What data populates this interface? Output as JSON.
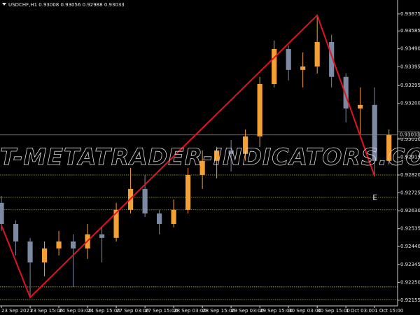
{
  "chart_data": {
    "type": "candlestick",
    "title": "USDCHF,H1  0.93008 0.93056 0.92988 0.93033",
    "watermark": "BEST-METATRADER-INDICATORS.COM",
    "annotation": "E",
    "up_color": "#f5a033",
    "down_color": "#7d8aa3",
    "candles": {
      "open": [
        0.92672,
        0.9256,
        0.92467,
        0.92356,
        0.9243,
        0.92467,
        0.9243,
        0.92505,
        0.92486,
        0.92635,
        0.92746,
        0.92616,
        0.9256,
        0.92635,
        0.9282,
        0.92895,
        0.9295,
        0.92932,
        0.93025,
        0.93303,
        0.93489,
        0.93378,
        0.93396,
        0.93526,
        0.93341,
        0.93173,
        0.93192,
        0.92895
      ],
      "high": [
        0.92709,
        0.92579,
        0.92486,
        0.92467,
        0.92523,
        0.92505,
        0.9256,
        0.92542,
        0.92672,
        0.92858,
        0.9282,
        0.92635,
        0.9269,
        0.92858,
        0.9295,
        0.92969,
        0.93006,
        0.93062,
        0.93341,
        0.93534,
        0.93508,
        0.93471,
        0.93668,
        0.93564,
        0.93359,
        0.93285,
        0.93285,
        0.93062
      ],
      "low": [
        0.92523,
        0.92393,
        0.9217,
        0.92282,
        0.92393,
        0.92226,
        0.92374,
        0.92356,
        0.92467,
        0.92616,
        0.92597,
        0.92505,
        0.92542,
        0.92616,
        0.92746,
        0.92802,
        0.92839,
        0.92895,
        0.92969,
        0.93285,
        0.93322,
        0.93285,
        0.93359,
        0.93285,
        0.93099,
        0.93025,
        0.92813,
        0.92876
      ],
      "close": [
        0.9256,
        0.92467,
        0.92356,
        0.9243,
        0.92467,
        0.9243,
        0.92505,
        0.92486,
        0.92635,
        0.92746,
        0.92616,
        0.9256,
        0.92635,
        0.9282,
        0.92895,
        0.9295,
        0.92932,
        0.93025,
        0.93303,
        0.93489,
        0.93378,
        0.93396,
        0.93526,
        0.93341,
        0.93173,
        0.93192,
        0.92895,
        0.93033
      ]
    },
    "zigzag": {
      "color": "#e0141e",
      "x": [
        0,
        2,
        22,
        26
      ],
      "values": [
        0.92553,
        0.9217,
        0.93668,
        0.92813
      ]
    },
    "levels": {
      "color": "#b8b800",
      "values": [
        0.9282,
        0.92701,
        0.92635,
        0.92226,
        0.92159
      ]
    },
    "current_price": {
      "value": 0.93033,
      "color": "#7a7a7a"
    },
    "xlim": [
      -0.1,
      27.6
    ],
    "ylim": [
      0.92125,
      0.93749
    ],
    "xticks": [
      {
        "value": 0,
        "label": "23 Sep 2021"
      },
      {
        "value": 2,
        "label": "23 Sep 15:00"
      },
      {
        "value": 4,
        "label": "24 Sep 03:00"
      },
      {
        "value": 6,
        "label": "24 Sep 15:00"
      },
      {
        "value": 8,
        "label": "27 Sep 03:00"
      },
      {
        "value": 10,
        "label": "27 Sep 15:00"
      },
      {
        "value": 12,
        "label": "28 Sep 03:00"
      },
      {
        "value": 14,
        "label": "28 Sep 15:00"
      },
      {
        "value": 16,
        "label": "29 Sep 03:00"
      },
      {
        "value": 18,
        "label": "29 Sep 15:00"
      },
      {
        "value": 20,
        "label": "30 Sep 03:00"
      },
      {
        "value": 22,
        "label": "30 Sep 15:00"
      },
      {
        "value": 24,
        "label": "1 Oct 03:00"
      },
      {
        "value": 26,
        "label": "1 Oct 15:00"
      }
    ],
    "yticks": [
      0.93675,
      0.93585,
      {
        "value": 0.9349,
        "label": "0.93490"
      },
      0.93395,
      0.93295,
      {
        "value": 0.932,
        "label": "0.93200"
      },
      {
        "value": 0.9301,
        "label": "0.93010"
      },
      0.92915,
      {
        "value": 0.9282,
        "label": "0.92820"
      },
      0.92725,
      {
        "value": 0.9263,
        "label": "0.92630"
      },
      0.92535,
      {
        "value": 0.9244,
        "label": "0.92440"
      },
      0.92345,
      {
        "value": 0.9225,
        "label": "0.92250"
      },
      0.92155
    ]
  }
}
